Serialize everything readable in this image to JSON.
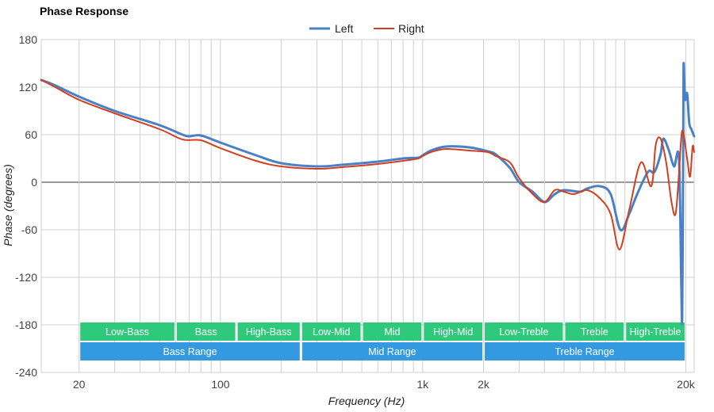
{
  "chart_data": {
    "type": "line",
    "title": "Phase Response",
    "xlabel": "Frequency (Hz)",
    "ylabel": "Phase (degrees)",
    "x_scale": "log",
    "xlim": [
      13,
      22000
    ],
    "ylim": [
      -240,
      180
    ],
    "y_ticks": [
      180,
      120,
      60,
      0,
      -60,
      -120,
      -180,
      -240
    ],
    "x_ticks": [
      {
        "value": 20,
        "label": "20"
      },
      {
        "value": 100,
        "label": "100"
      },
      {
        "value": 1000,
        "label": "1k"
      },
      {
        "value": 2000,
        "label": "2k"
      },
      {
        "value": 20000,
        "label": "20k"
      }
    ],
    "x_minor_gridlines": [
      20,
      30,
      40,
      50,
      60,
      70,
      80,
      90,
      100,
      200,
      300,
      400,
      500,
      600,
      700,
      800,
      900,
      1000,
      2000,
      3000,
      4000,
      5000,
      6000,
      7000,
      8000,
      9000,
      10000,
      20000
    ],
    "grid": true,
    "legend": {
      "position": "top",
      "entries": [
        "Left",
        "Right"
      ]
    },
    "series": [
      {
        "name": "Left",
        "color": "#4a80c6",
        "points": [
          [
            13,
            129
          ],
          [
            15,
            123
          ],
          [
            20,
            108
          ],
          [
            30,
            90
          ],
          [
            50,
            72
          ],
          [
            65,
            60
          ],
          [
            70,
            58
          ],
          [
            80,
            59
          ],
          [
            100,
            50
          ],
          [
            150,
            34
          ],
          [
            200,
            24
          ],
          [
            300,
            20
          ],
          [
            400,
            22
          ],
          [
            600,
            26
          ],
          [
            800,
            30
          ],
          [
            950,
            31
          ],
          [
            1000,
            34
          ],
          [
            1100,
            40
          ],
          [
            1300,
            45
          ],
          [
            1700,
            44
          ],
          [
            2100,
            39
          ],
          [
            2300,
            35
          ],
          [
            2700,
            18
          ],
          [
            3000,
            0
          ],
          [
            3500,
            -12
          ],
          [
            4000,
            -25
          ],
          [
            4500,
            -15
          ],
          [
            5000,
            -10
          ],
          [
            6000,
            -12
          ],
          [
            6500,
            -8
          ],
          [
            7500,
            -5
          ],
          [
            8500,
            -15
          ],
          [
            9500,
            -60
          ],
          [
            10500,
            -40
          ],
          [
            11500,
            -15
          ],
          [
            13000,
            13
          ],
          [
            14000,
            13
          ],
          [
            15000,
            35
          ],
          [
            15500,
            55
          ],
          [
            16500,
            40
          ],
          [
            17500,
            20
          ],
          [
            18500,
            30
          ],
          [
            19000,
            -130
          ],
          [
            19200,
            -170
          ],
          [
            19400,
            20
          ],
          [
            19500,
            148
          ],
          [
            19800,
            105
          ],
          [
            20300,
            112
          ],
          [
            20800,
            75
          ],
          [
            21300,
            67
          ],
          [
            22000,
            58
          ]
        ]
      },
      {
        "name": "Right",
        "color": "#d04020",
        "points": [
          [
            13,
            129
          ],
          [
            15,
            121
          ],
          [
            20,
            104
          ],
          [
            30,
            87
          ],
          [
            50,
            67
          ],
          [
            65,
            54
          ],
          [
            80,
            53
          ],
          [
            100,
            43
          ],
          [
            150,
            27
          ],
          [
            200,
            20
          ],
          [
            300,
            17
          ],
          [
            400,
            19
          ],
          [
            600,
            23
          ],
          [
            800,
            27
          ],
          [
            950,
            30
          ],
          [
            1000,
            33
          ],
          [
            1100,
            38
          ],
          [
            1300,
            42
          ],
          [
            1700,
            40
          ],
          [
            2100,
            38
          ],
          [
            2300,
            33
          ],
          [
            2700,
            25
          ],
          [
            3000,
            5
          ],
          [
            3500,
            -15
          ],
          [
            4000,
            -25
          ],
          [
            4500,
            -10
          ],
          [
            5000,
            -12
          ],
          [
            5600,
            -15
          ],
          [
            6500,
            -10
          ],
          [
            7500,
            -20
          ],
          [
            8500,
            -40
          ],
          [
            9400,
            -85
          ],
          [
            10500,
            -35
          ],
          [
            12000,
            25
          ],
          [
            13500,
            -5
          ],
          [
            14200,
            47
          ],
          [
            15000,
            55
          ],
          [
            16000,
            25
          ],
          [
            17000,
            -25
          ],
          [
            17800,
            -40
          ],
          [
            18500,
            10
          ],
          [
            19200,
            65
          ],
          [
            20300,
            30
          ],
          [
            21000,
            7
          ],
          [
            21600,
            45
          ],
          [
            22000,
            38
          ]
        ]
      }
    ],
    "bands": [
      {
        "row": 1,
        "label": "Low-Bass",
        "from": 20,
        "to": 60,
        "color": "#2ec97a"
      },
      {
        "row": 1,
        "label": "Bass",
        "from": 60,
        "to": 120,
        "color": "#2ec97a"
      },
      {
        "row": 1,
        "label": "High-Bass",
        "from": 120,
        "to": 250,
        "color": "#2ec97a"
      },
      {
        "row": 1,
        "label": "Low-Mid",
        "from": 250,
        "to": 500,
        "color": "#2ec97a"
      },
      {
        "row": 1,
        "label": "Mid",
        "from": 500,
        "to": 1000,
        "color": "#2ec97a"
      },
      {
        "row": 1,
        "label": "High-Mid",
        "from": 1000,
        "to": 2000,
        "color": "#2ec97a"
      },
      {
        "row": 1,
        "label": "Low-Treble",
        "from": 2000,
        "to": 5000,
        "color": "#2ec97a"
      },
      {
        "row": 1,
        "label": "Treble",
        "from": 5000,
        "to": 10000,
        "color": "#2ec97a"
      },
      {
        "row": 1,
        "label": "High-Treble",
        "from": 10000,
        "to": 20000,
        "color": "#2ec97a"
      },
      {
        "row": 2,
        "label": "Bass Range",
        "from": 20,
        "to": 250,
        "color": "#3399e0"
      },
      {
        "row": 2,
        "label": "Mid Range",
        "from": 250,
        "to": 2000,
        "color": "#3399e0"
      },
      {
        "row": 2,
        "label": "Treble Range",
        "from": 2000,
        "to": 20000,
        "color": "#3399e0"
      }
    ]
  }
}
